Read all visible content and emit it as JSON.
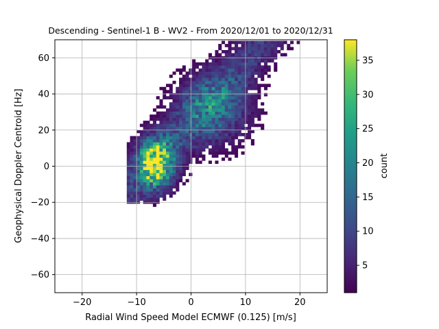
{
  "chart_data": {
    "type": "heatmap",
    "title": "Descending - Sentinel-1 B - WV2 - From 2020/12/01 to 2020/12/31",
    "xlabel": "Radial Wind Speed Model ECMWF (0.125) [m/s]",
    "ylabel": "Geophysical Doppler Centroid [Hz]",
    "xlim": [
      -25,
      25
    ],
    "ylim": [
      -70,
      70
    ],
    "xticks": [
      -20,
      -10,
      0,
      10,
      20
    ],
    "xtick_labels": [
      "−20",
      "−10",
      "0",
      "10",
      "20"
    ],
    "yticks": [
      -60,
      -40,
      -20,
      0,
      20,
      40,
      60
    ],
    "ytick_labels": [
      "−60",
      "−40",
      "−20",
      "0",
      "20",
      "40",
      "60"
    ],
    "grid": true,
    "colormap": "viridis",
    "colorbar": {
      "label": "count",
      "range": [
        1,
        38
      ],
      "ticks": [
        5,
        10,
        15,
        20,
        25,
        30,
        35
      ],
      "tick_labels": [
        "5",
        "10",
        "15",
        "20",
        "25",
        "30",
        "35"
      ]
    },
    "clusters": [
      {
        "x": -6.5,
        "y": 2,
        "sx": 2.2,
        "sy": 9,
        "peak": 36
      },
      {
        "x": 4,
        "y": 32,
        "sx": 4.5,
        "sy": 13,
        "peak": 14
      }
    ],
    "seed": 7
  }
}
